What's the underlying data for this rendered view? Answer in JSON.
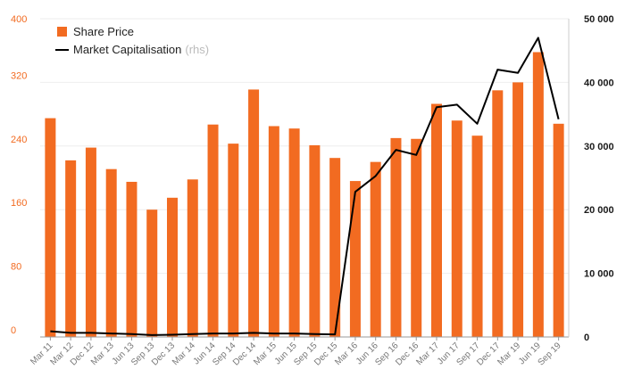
{
  "chart_data": {
    "type": "bar",
    "categories": [
      "Mar 11",
      "Mar 12",
      "Dec 12",
      "Mar 13",
      "Jun 13",
      "Sep 13",
      "Dec 13",
      "Mar 14",
      "Jun 14",
      "Sep 14",
      "Dec 14",
      "Mar 15",
      "Jun 15",
      "Sep 15",
      "Dec 15",
      "Mar 16",
      "Jun 16",
      "Sep 16",
      "Dec 16",
      "Mar 17",
      "Jun 17",
      "Sep 17",
      "Dec 17",
      "Mar 19",
      "Jun 19",
      "Sep 19"
    ],
    "series": [
      {
        "name": "Share Price",
        "type": "bar",
        "axis": "left",
        "color": "#f26b21",
        "values": [
          275,
          222,
          238,
          211,
          195,
          160,
          175,
          198,
          267,
          243,
          311,
          265,
          262,
          241,
          225,
          196,
          220,
          250,
          249,
          293,
          272,
          253,
          310,
          320,
          358,
          268
        ]
      },
      {
        "name": "Market Capitalisation",
        "name_note": "(rhs)",
        "type": "line",
        "axis": "right",
        "color": "#000000",
        "values": [
          900,
          650,
          650,
          550,
          450,
          300,
          350,
          450,
          550,
          550,
          650,
          550,
          550,
          450,
          400,
          22800,
          25300,
          29400,
          28600,
          36100,
          36500,
          33500,
          42000,
          41500,
          47000,
          34200
        ]
      }
    ],
    "y_left": {
      "ylim": [
        0,
        400
      ],
      "ticks": [
        "0",
        "80",
        "160",
        "240",
        "320",
        "400"
      ]
    },
    "y_right": {
      "ylim": [
        0,
        50000
      ],
      "ticks": [
        "0",
        "10 000",
        "20 000",
        "30 000",
        "40 000",
        "50 000"
      ]
    },
    "grid": true,
    "legend_position": "top-left"
  }
}
